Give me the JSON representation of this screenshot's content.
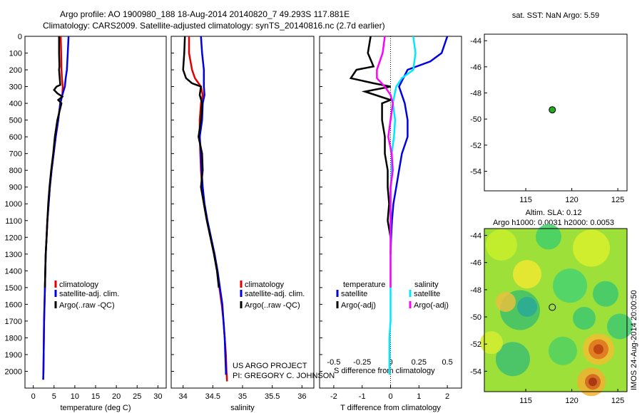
{
  "header": {
    "line1": "Argo profile: AO 1900980_188 18-Aug-2014 20140820_7 49.293S 117.881E",
    "line2": "Climatology: CARS2009. Satellite-adjusted climatology: synTS_20140816.nc (2.7d earlier)"
  },
  "colors": {
    "clim": "#e00000",
    "sat": "#0000e0",
    "argo": "#000000",
    "sal_sat": "#00e8ff",
    "sal_argo": "#ff00ff",
    "marker": "#22aa22"
  },
  "chart_data": [
    {
      "type": "line",
      "id": "temperature",
      "xlabel": "temperature (deg C)",
      "xlim": [
        -2,
        32
      ],
      "xticks": [
        "0",
        "5",
        "10",
        "15",
        "20",
        "25",
        "30"
      ],
      "ylim": [
        2100,
        0
      ],
      "yticks": [
        "0",
        "100",
        "200",
        "300",
        "400",
        "500",
        "600",
        "700",
        "800",
        "900",
        "1000",
        "1100",
        "1200",
        "1300",
        "1400",
        "1500",
        "1600",
        "1700",
        "1800",
        "1900",
        "2000"
      ],
      "legend": [
        "climatology",
        "satellite-adj. clim.",
        "Argo(..raw -QC)"
      ],
      "series": [
        {
          "name": "climatology",
          "color": "clim",
          "points": [
            [
              6.6,
              0
            ],
            [
              6.7,
              100
            ],
            [
              6.8,
              200
            ],
            [
              6.9,
              250
            ],
            [
              7.1,
              300
            ],
            [
              7.0,
              350
            ],
            [
              6.5,
              400
            ],
            [
              6.0,
              500
            ],
            [
              5.4,
              600
            ],
            [
              4.9,
              700
            ],
            [
              4.4,
              800
            ],
            [
              4.0,
              900
            ],
            [
              3.7,
              1000
            ],
            [
              3.4,
              1100
            ],
            [
              3.2,
              1200
            ],
            [
              3.0,
              1300
            ],
            [
              2.9,
              1400
            ],
            [
              2.8,
              1500
            ],
            [
              2.7,
              1600
            ],
            [
              2.6,
              1700
            ],
            [
              2.55,
              1800
            ],
            [
              2.5,
              1900
            ],
            [
              2.45,
              2000
            ],
            [
              2.4,
              2050
            ]
          ]
        },
        {
          "name": "satellite-adj. clim.",
          "color": "sat",
          "points": [
            [
              8.5,
              0
            ],
            [
              8.3,
              100
            ],
            [
              8.1,
              200
            ],
            [
              7.8,
              250
            ],
            [
              7.6,
              300
            ],
            [
              7.0,
              350
            ],
            [
              6.5,
              400
            ],
            [
              6.0,
              500
            ],
            [
              5.4,
              600
            ],
            [
              4.9,
              700
            ],
            [
              4.4,
              800
            ],
            [
              4.0,
              900
            ],
            [
              3.7,
              1000
            ],
            [
              3.4,
              1100
            ],
            [
              3.2,
              1200
            ],
            [
              3.0,
              1300
            ],
            [
              2.9,
              1400
            ],
            [
              2.8,
              1500
            ],
            [
              2.7,
              1600
            ],
            [
              2.6,
              1700
            ],
            [
              2.55,
              1800
            ],
            [
              2.5,
              1900
            ],
            [
              2.45,
              2000
            ],
            [
              2.4,
              2050
            ]
          ]
        },
        {
          "name": "Argo(..raw -QC)",
          "color": "argo",
          "points": [
            [
              6.2,
              0
            ],
            [
              6.2,
              100
            ],
            [
              6.3,
              180
            ],
            [
              6.2,
              200
            ],
            [
              6.4,
              260
            ],
            [
              6.5,
              290
            ],
            [
              5.6,
              300
            ],
            [
              5.0,
              320
            ],
            [
              5.8,
              340
            ],
            [
              7.0,
              360
            ],
            [
              6.0,
              380
            ],
            [
              6.8,
              400
            ],
            [
              5.8,
              500
            ],
            [
              5.2,
              600
            ],
            [
              4.8,
              700
            ],
            [
              4.3,
              800
            ],
            [
              3.9,
              900
            ],
            [
              3.6,
              1000
            ],
            [
              3.4,
              1100
            ],
            [
              3.2,
              1200
            ],
            [
              3.0,
              1300
            ],
            [
              2.9,
              1400
            ],
            [
              2.8,
              1500
            ]
          ]
        }
      ]
    },
    {
      "type": "line",
      "id": "salinity",
      "xlabel": "salinity",
      "xlim": [
        33.8,
        36.2
      ],
      "xticks": [
        "34",
        "34.5",
        "35",
        "35.5",
        "36"
      ],
      "ylim": [
        2100,
        0
      ],
      "legend": [
        "climatology",
        "satellite-adj. clim.",
        "Argo(..raw -QC)"
      ],
      "annotation": [
        "US ARGO PROJECT",
        "PI: GREGORY C. JOHNSON"
      ],
      "series": [
        {
          "name": "climatology",
          "color": "clim",
          "points": [
            [
              34.1,
              0
            ],
            [
              34.1,
              100
            ],
            [
              34.15,
              200
            ],
            [
              34.2,
              250
            ],
            [
              34.3,
              300
            ],
            [
              34.33,
              350
            ],
            [
              34.3,
              400
            ],
            [
              34.28,
              500
            ],
            [
              34.28,
              600
            ],
            [
              34.29,
              700
            ],
            [
              34.3,
              800
            ],
            [
              34.32,
              900
            ],
            [
              34.35,
              1000
            ],
            [
              34.4,
              1100
            ],
            [
              34.46,
              1200
            ],
            [
              34.52,
              1300
            ],
            [
              34.57,
              1400
            ],
            [
              34.61,
              1500
            ],
            [
              34.65,
              1600
            ],
            [
              34.68,
              1700
            ],
            [
              34.7,
              1800
            ],
            [
              34.72,
              1900
            ],
            [
              34.73,
              2000
            ],
            [
              34.74,
              2060
            ]
          ]
        },
        {
          "name": "satellite-adj. clim.",
          "color": "sat",
          "points": [
            [
              34.3,
              0
            ],
            [
              34.32,
              100
            ],
            [
              34.35,
              200
            ],
            [
              34.35,
              300
            ],
            [
              34.36,
              350
            ],
            [
              34.33,
              400
            ],
            [
              34.32,
              500
            ],
            [
              34.28,
              600
            ],
            [
              34.3,
              700
            ],
            [
              34.31,
              800
            ],
            [
              34.33,
              900
            ],
            [
              34.36,
              1000
            ],
            [
              34.41,
              1100
            ],
            [
              34.47,
              1200
            ],
            [
              34.53,
              1300
            ],
            [
              34.58,
              1400
            ],
            [
              34.62,
              1500
            ],
            [
              34.66,
              1600
            ],
            [
              34.68,
              1700
            ],
            [
              34.7,
              1800
            ],
            [
              34.71,
              1900
            ],
            [
              34.72,
              2000
            ],
            [
              34.72,
              2020
            ]
          ]
        },
        {
          "name": "Argo(..raw -QC)",
          "color": "argo",
          "points": [
            [
              34.03,
              0
            ],
            [
              34.02,
              100
            ],
            [
              34.0,
              200
            ],
            [
              34.05,
              250
            ],
            [
              34.15,
              280
            ],
            [
              34.3,
              300
            ],
            [
              34.28,
              350
            ],
            [
              34.32,
              400
            ],
            [
              34.3,
              500
            ],
            [
              34.26,
              600
            ],
            [
              34.32,
              700
            ],
            [
              34.33,
              800
            ],
            [
              34.3,
              900
            ],
            [
              34.35,
              1000
            ],
            [
              34.4,
              1100
            ],
            [
              34.46,
              1200
            ],
            [
              34.52,
              1300
            ],
            [
              34.57,
              1400
            ],
            [
              34.6,
              1500
            ]
          ]
        }
      ]
    },
    {
      "type": "line",
      "id": "difference",
      "xlabel": "T difference from climatology",
      "xlabel_top": "S difference from climatology",
      "xlim_T": [
        -2.5,
        2.5
      ],
      "xticks_T": [
        "-2",
        "-1",
        "0",
        "1",
        "2"
      ],
      "xlim_S": [
        -0.625,
        0.625
      ],
      "xticks_S": [
        "-0.5",
        "-0.25",
        "0",
        "0.25",
        "0.5"
      ],
      "ylim": [
        2100,
        0
      ],
      "legend": {
        "temperature_head": "temperature",
        "salinity_head": "salinity",
        "items": [
          "satellite",
          "Argo(-adj)",
          "satellite",
          "Argo(-adj)"
        ]
      },
      "series": [
        {
          "name": "T satellite",
          "color": "sat",
          "axis": "T",
          "points": [
            [
              2.0,
              0
            ],
            [
              1.8,
              100
            ],
            [
              1.4,
              150
            ],
            [
              0.6,
              200
            ],
            [
              0.3,
              300
            ],
            [
              0.4,
              350
            ],
            [
              0.5,
              400
            ],
            [
              0.6,
              500
            ],
            [
              0.6,
              600
            ],
            [
              0.4,
              700
            ],
            [
              0.3,
              800
            ],
            [
              0.2,
              900
            ],
            [
              0.1,
              1000
            ],
            [
              0.05,
              1100
            ],
            [
              0.02,
              1200
            ],
            [
              0,
              1300
            ]
          ]
        },
        {
          "name": "T Argo(-adj)",
          "color": "argo",
          "axis": "T",
          "points": [
            [
              -0.7,
              0
            ],
            [
              -0.8,
              100
            ],
            [
              -0.6,
              180
            ],
            [
              -1.2,
              200
            ],
            [
              -1.4,
              250
            ],
            [
              -0.6,
              280
            ],
            [
              0,
              300
            ],
            [
              -0.9,
              330
            ],
            [
              0,
              380
            ],
            [
              -0.3,
              400
            ],
            [
              -0.3,
              500
            ],
            [
              -0.2,
              600
            ],
            [
              -0.2,
              700
            ],
            [
              -0.1,
              800
            ],
            [
              -0.1,
              900
            ],
            [
              -0.05,
              1000
            ],
            [
              -0.1,
              1100
            ],
            [
              0,
              1200
            ]
          ]
        },
        {
          "name": "S satellite",
          "color": "sal_sat",
          "axis": "S",
          "points": [
            [
              0.2,
              0
            ],
            [
              0.22,
              100
            ],
            [
              0.2,
              200
            ],
            [
              0.1,
              250
            ],
            [
              0.05,
              300
            ],
            [
              0.02,
              400
            ],
            [
              0.04,
              500
            ],
            [
              0.03,
              600
            ],
            [
              0.01,
              700
            ],
            [
              0.01,
              800
            ],
            [
              0,
              900
            ],
            [
              0,
              1000
            ],
            [
              0,
              1100
            ],
            [
              0,
              1200
            ],
            [
              0,
              1300
            ],
            [
              0,
              1400
            ],
            [
              0,
              1500
            ],
            [
              0,
              1600
            ],
            [
              0,
              1700
            ],
            [
              -0.01,
              1800
            ],
            [
              -0.01,
              1900
            ],
            [
              -0.01,
              2000
            ],
            [
              -0.01,
              2020
            ]
          ]
        },
        {
          "name": "S Argo(-adj)",
          "color": "sal_argo",
          "axis": "S",
          "points": [
            [
              -0.05,
              0
            ],
            [
              -0.07,
              100
            ],
            [
              -0.12,
              200
            ],
            [
              -0.12,
              250
            ],
            [
              -0.05,
              300
            ],
            [
              0,
              350
            ],
            [
              0.02,
              400
            ],
            [
              0,
              500
            ],
            [
              -0.02,
              600
            ],
            [
              0.01,
              700
            ],
            [
              0.02,
              800
            ],
            [
              0,
              900
            ],
            [
              0,
              1000
            ],
            [
              0,
              1100
            ],
            [
              0,
              1200
            ],
            [
              0,
              1300
            ],
            [
              0,
              1400
            ],
            [
              0,
              1500
            ]
          ]
        }
      ]
    },
    {
      "type": "scatter",
      "id": "sst_map",
      "title": "sat. SST: NaN Argo: 5.59",
      "xlim": [
        110.5,
        126
      ],
      "xticks": [
        "115",
        "120",
        "125"
      ],
      "ylim": [
        -55.5,
        -43.5
      ],
      "yticks": [
        "-44",
        "-46",
        "-48",
        "-50",
        "-52",
        "-54"
      ],
      "points": [
        [
          117.881,
          -49.293
        ]
      ]
    },
    {
      "type": "heatmap",
      "id": "sla_map",
      "title1": "Altim. SLA: 0.12",
      "title2": "Argo h1000: 0.0031 h2000: 0.0053",
      "side_label": "IMOS 24-Aug-2014 20:00:50",
      "xlim": [
        110.5,
        126
      ],
      "xticks": [
        "115",
        "120",
        "125"
      ],
      "ylim": [
        -55.5,
        -43.5
      ],
      "yticks": [
        "-44",
        "-46",
        "-48",
        "-50",
        "-52",
        "-54"
      ],
      "points": [
        [
          117.881,
          -49.293
        ]
      ]
    }
  ]
}
